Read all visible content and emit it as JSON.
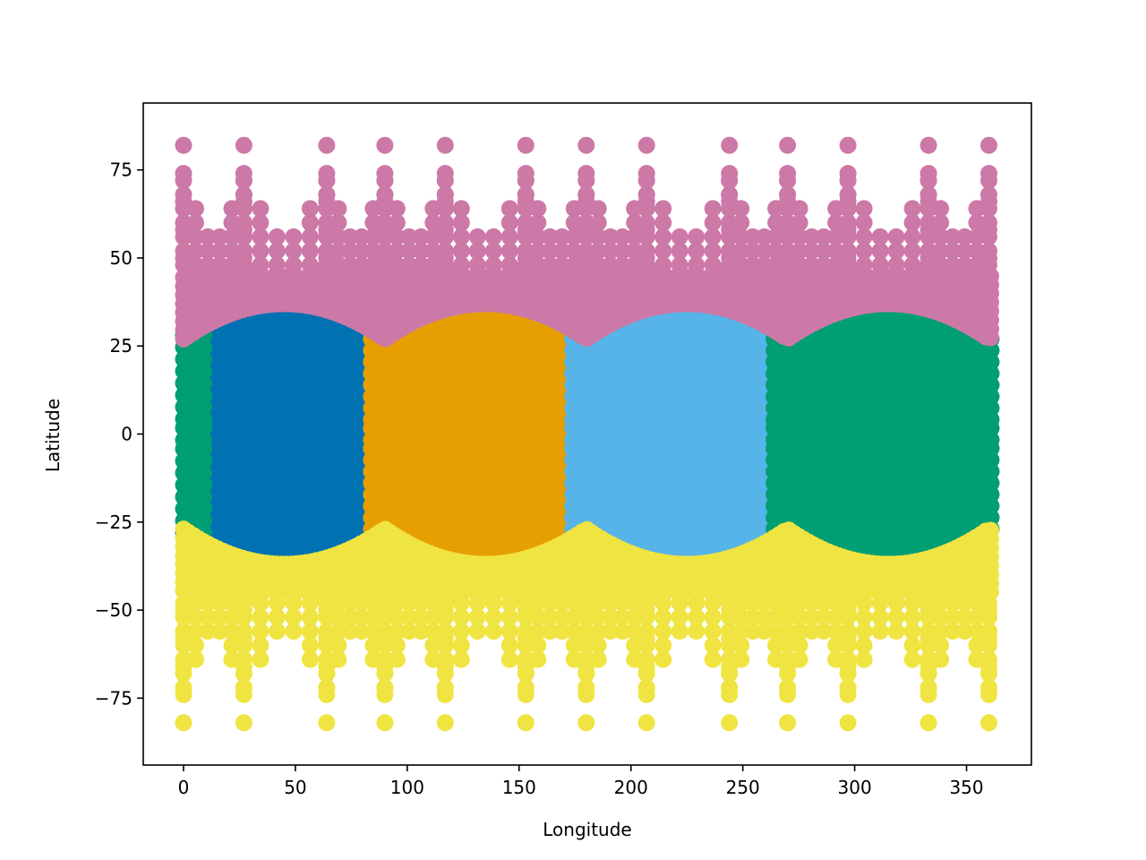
{
  "chart_data": {
    "type": "scatter",
    "title": "",
    "xlabel": "Longitude",
    "ylabel": "Latitude",
    "xlim": [
      -18,
      379
    ],
    "ylim": [
      -94,
      94
    ],
    "grid": false,
    "legend": "none",
    "x_ticks": [
      0,
      50,
      100,
      150,
      200,
      250,
      300,
      350
    ],
    "y_ticks": [
      -75,
      -50,
      -25,
      0,
      25,
      50,
      75
    ],
    "x_tick_labels": [
      "0",
      "50",
      "100",
      "150",
      "200",
      "250",
      "300",
      "350"
    ],
    "y_tick_labels": [
      "−75",
      "−50",
      "−25",
      "0",
      "25",
      "50",
      "75"
    ],
    "series": [
      {
        "color": "#0072B2",
        "region": "equatorial face centered at lon 45",
        "lon_range": [
          9,
          81
        ],
        "lat_max_at_center": 37,
        "lat_max_at_edge": 31,
        "lat_rows": [
          -33,
          -29,
          -25,
          -21,
          -17,
          -13,
          -9,
          -5,
          -2,
          2,
          5,
          9,
          13,
          17,
          21,
          25,
          29,
          33
        ]
      },
      {
        "color": "#E69F00",
        "region": "equatorial face centered at lon 135",
        "lon_range": [
          84,
          171
        ],
        "lat_max_at_center": 37,
        "lat_max_at_edge": 27,
        "lat_rows": [
          -33,
          -29,
          -25,
          -21,
          -17,
          -13,
          -9,
          -5,
          -2,
          2,
          5,
          9,
          13,
          17,
          21,
          25,
          29,
          33
        ]
      },
      {
        "color": "#56B4E9",
        "region": "equatorial face centered at lon 225",
        "lon_range": [
          174,
          261
        ],
        "lat_max_at_center": 37,
        "lat_max_at_edge": 27,
        "lat_rows": [
          -33,
          -29,
          -25,
          -21,
          -17,
          -13,
          -9,
          -5,
          -2,
          2,
          5,
          9,
          13,
          17,
          21,
          25,
          29,
          33
        ]
      },
      {
        "color": "#009E73",
        "region": "equatorial face centered at lon 315 (wraps to lon 0-9)",
        "lon_range": [
          264,
          361
        ],
        "wrap_range": [
          0,
          9
        ],
        "lat_max_at_center": 37,
        "lat_max_at_edge": 27,
        "lat_rows": [
          -33,
          -29,
          -25,
          -21,
          -17,
          -13,
          -9,
          -5,
          -2,
          2,
          5,
          9,
          13,
          17,
          21,
          25,
          29,
          33
        ]
      },
      {
        "color": "#CC79A7",
        "region": "north polar face",
        "lon_range": [
          0,
          361
        ],
        "lat_range": [
          27,
          85
        ],
        "spoke_longitudes": [
          0,
          27,
          64,
          90,
          117,
          153,
          180,
          207,
          244,
          270,
          297,
          333,
          360
        ]
      },
      {
        "color": "#F0E442",
        "region": "south polar face",
        "lon_range": [
          0,
          361
        ],
        "lat_range": [
          -85,
          -27
        ],
        "spoke_longitudes": [
          0,
          27,
          64,
          90,
          117,
          153,
          180,
          207,
          244,
          270,
          297,
          333,
          360
        ]
      }
    ]
  }
}
